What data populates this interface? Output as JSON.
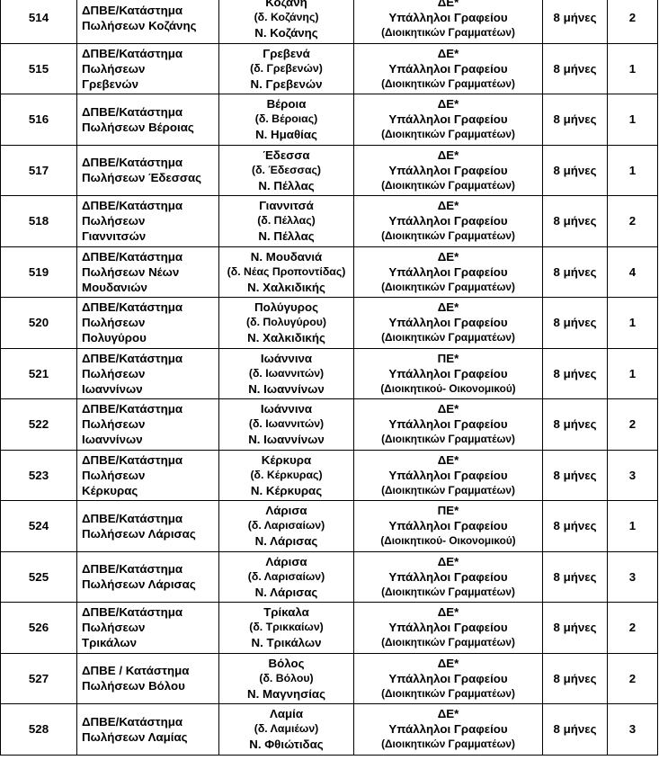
{
  "rows": [
    {
      "code": "514",
      "unit": "ΔΠΒΕ/Κατάστημα\nΠωλήσεων Κοζάνης",
      "loc": [
        "Κοζάνη",
        "(δ. Κοζάνης)",
        "Ν. Κοζάνης"
      ],
      "spec": [
        "ΔΕ*",
        "Υπάλληλοι Γραφείου",
        "(Διοικητικών Γραμματέων)"
      ],
      "duration": "8 μήνες",
      "count": "2"
    },
    {
      "code": "515",
      "unit": "ΔΠΒΕ/Κατάστημα\nΠωλήσεων\nΓρεβενών",
      "loc": [
        "Γρεβενά",
        "(δ. Γρεβενών)",
        "Ν. Γρεβενών"
      ],
      "spec": [
        "ΔΕ*",
        "Υπάλληλοι Γραφείου",
        "(Διοικητικών Γραμματέων)"
      ],
      "duration": "8 μήνες",
      "count": "1"
    },
    {
      "code": "516",
      "unit": "ΔΠΒΕ/Κατάστημα\nΠωλήσεων Βέροιας",
      "loc": [
        "Βέροια",
        "(δ. Βέροιας)",
        "Ν. Ημαθίας"
      ],
      "spec": [
        "ΔΕ*",
        "Υπάλληλοι Γραφείου",
        "(Διοικητικών Γραμματέων)"
      ],
      "duration": "8 μήνες",
      "count": "1"
    },
    {
      "code": "517",
      "unit": "ΔΠΒΕ/Κατάστημα\nΠωλήσεων Έδεσσας",
      "loc": [
        "Έδεσσα",
        "(δ. Έδεσσας)",
        "Ν. Πέλλας"
      ],
      "spec": [
        "ΔΕ*",
        "Υπάλληλοι Γραφείου",
        "(Διοικητικών Γραμματέων)"
      ],
      "duration": "8 μήνες",
      "count": "1"
    },
    {
      "code": "518",
      "unit": "ΔΠΒΕ/Κατάστημα\nΠωλήσεων\nΓιαννιτσών",
      "loc": [
        "Γιαννιτσά",
        "(δ. Πέλλας)",
        "Ν. Πέλλας"
      ],
      "spec": [
        "ΔΕ*",
        "Υπάλληλοι Γραφείου",
        "(Διοικητικών Γραμματέων)"
      ],
      "duration": "8 μήνες",
      "count": "2"
    },
    {
      "code": "519",
      "unit": "ΔΠΒΕ/Κατάστημα\nΠωλήσεων Νέων\nΜουδανιών",
      "loc": [
        "Ν. Μουδανιά",
        "(δ. Νέας Προποντίδας)",
        "Ν. Χαλκιδικής"
      ],
      "spec": [
        "ΔΕ*",
        "Υπάλληλοι Γραφείου",
        "(Διοικητικών Γραμματέων)"
      ],
      "duration": "8 μήνες",
      "count": "4"
    },
    {
      "code": "520",
      "unit": "ΔΠΒΕ/Κατάστημα\nΠωλήσεων\nΠολυγύρου",
      "loc": [
        "Πολύγυρος",
        "(δ. Πολυγύρου)",
        "Ν. Χαλκιδικής"
      ],
      "spec": [
        "ΔΕ*",
        "Υπάλληλοι Γραφείου",
        "(Διοικητικών Γραμματέων)"
      ],
      "duration": "8 μήνες",
      "count": "1"
    },
    {
      "code": "521",
      "unit": "ΔΠΒΕ/Κατάστημα\nΠωλήσεων\nΙωαννίνων",
      "loc": [
        "Ιωάννινα",
        "(δ. Ιωαννιτών)",
        "Ν. Ιωαννίνων"
      ],
      "spec": [
        "ΠΕ*",
        "Υπάλληλοι Γραφείου",
        "(Διοικητικού- Οικονομικού)"
      ],
      "duration": "8 μήνες",
      "count": "1"
    },
    {
      "code": "522",
      "unit": "ΔΠΒΕ/Κατάστημα\nΠωλήσεων\nΙωαννίνων",
      "loc": [
        "Ιωάννινα",
        "(δ. Ιωαννιτών)",
        "Ν. Ιωαννίνων"
      ],
      "spec": [
        "ΔΕ*",
        "Υπάλληλοι Γραφείου",
        "(Διοικητικών Γραμματέων)"
      ],
      "duration": "8 μήνες",
      "count": "2"
    },
    {
      "code": "523",
      "unit": "ΔΠΒΕ/Κατάστημα\nΠωλήσεων\nΚέρκυρας",
      "loc": [
        "Κέρκυρα",
        "(δ. Κέρκυρας)",
        "Ν. Κέρκυρας"
      ],
      "spec": [
        "ΔΕ*",
        "Υπάλληλοι Γραφείου",
        "(Διοικητικών Γραμματέων)"
      ],
      "duration": "8 μήνες",
      "count": "3"
    },
    {
      "code": "524",
      "unit": "ΔΠΒΕ/Κατάστημα\nΠωλήσεων Λάρισας",
      "loc": [
        "Λάρισα",
        "(δ. Λαρισαίων)",
        "Ν. Λάρισας"
      ],
      "spec": [
        "ΠΕ*",
        "Υπάλληλοι Γραφείου",
        "(Διοικητικού- Οικονομικού)"
      ],
      "duration": "8 μήνες",
      "count": "1"
    },
    {
      "code": "525",
      "unit": "ΔΠΒΕ/Κατάστημα\nΠωλήσεων Λάρισας",
      "loc": [
        "Λάρισα",
        "(δ. Λαρισαίων)",
        "Ν. Λάρισας"
      ],
      "spec": [
        "ΔΕ*",
        "Υπάλληλοι Γραφείου",
        "(Διοικητικών Γραμματέων)"
      ],
      "duration": "8 μήνες",
      "count": "3"
    },
    {
      "code": "526",
      "unit": "ΔΠΒΕ/Κατάστημα\nΠωλήσεων\nΤρικάλων",
      "loc": [
        "Τρίκαλα",
        "(δ. Τρικκαίων)",
        "Ν. Τρικάλων"
      ],
      "spec": [
        "ΔΕ*",
        "Υπάλληλοι Γραφείου",
        "(Διοικητικών Γραμματέων)"
      ],
      "duration": "8 μήνες",
      "count": "2"
    },
    {
      "code": "527",
      "unit": "ΔΠΒΕ / Κατάστημα\nΠωλήσεων Βόλου",
      "loc": [
        "Βόλος",
        "(δ. Βόλου)",
        "Ν. Μαγνησίας"
      ],
      "spec": [
        "ΔΕ*",
        "Υπάλληλοι Γραφείου",
        "(Διοικητικών Γραμματέων)"
      ],
      "duration": "8 μήνες",
      "count": "2"
    },
    {
      "code": "528",
      "unit": "ΔΠΒΕ/Κατάστημα\nΠωλήσεων Λαμίας",
      "loc": [
        "Λαμία",
        "(δ. Λαμιέων)",
        "Ν. Φθιώτιδας"
      ],
      "spec": [
        "ΔΕ*",
        "Υπάλληλοι Γραφείου",
        "(Διοικητικών Γραμματέων)"
      ],
      "duration": "8 μήνες",
      "count": "3"
    }
  ]
}
